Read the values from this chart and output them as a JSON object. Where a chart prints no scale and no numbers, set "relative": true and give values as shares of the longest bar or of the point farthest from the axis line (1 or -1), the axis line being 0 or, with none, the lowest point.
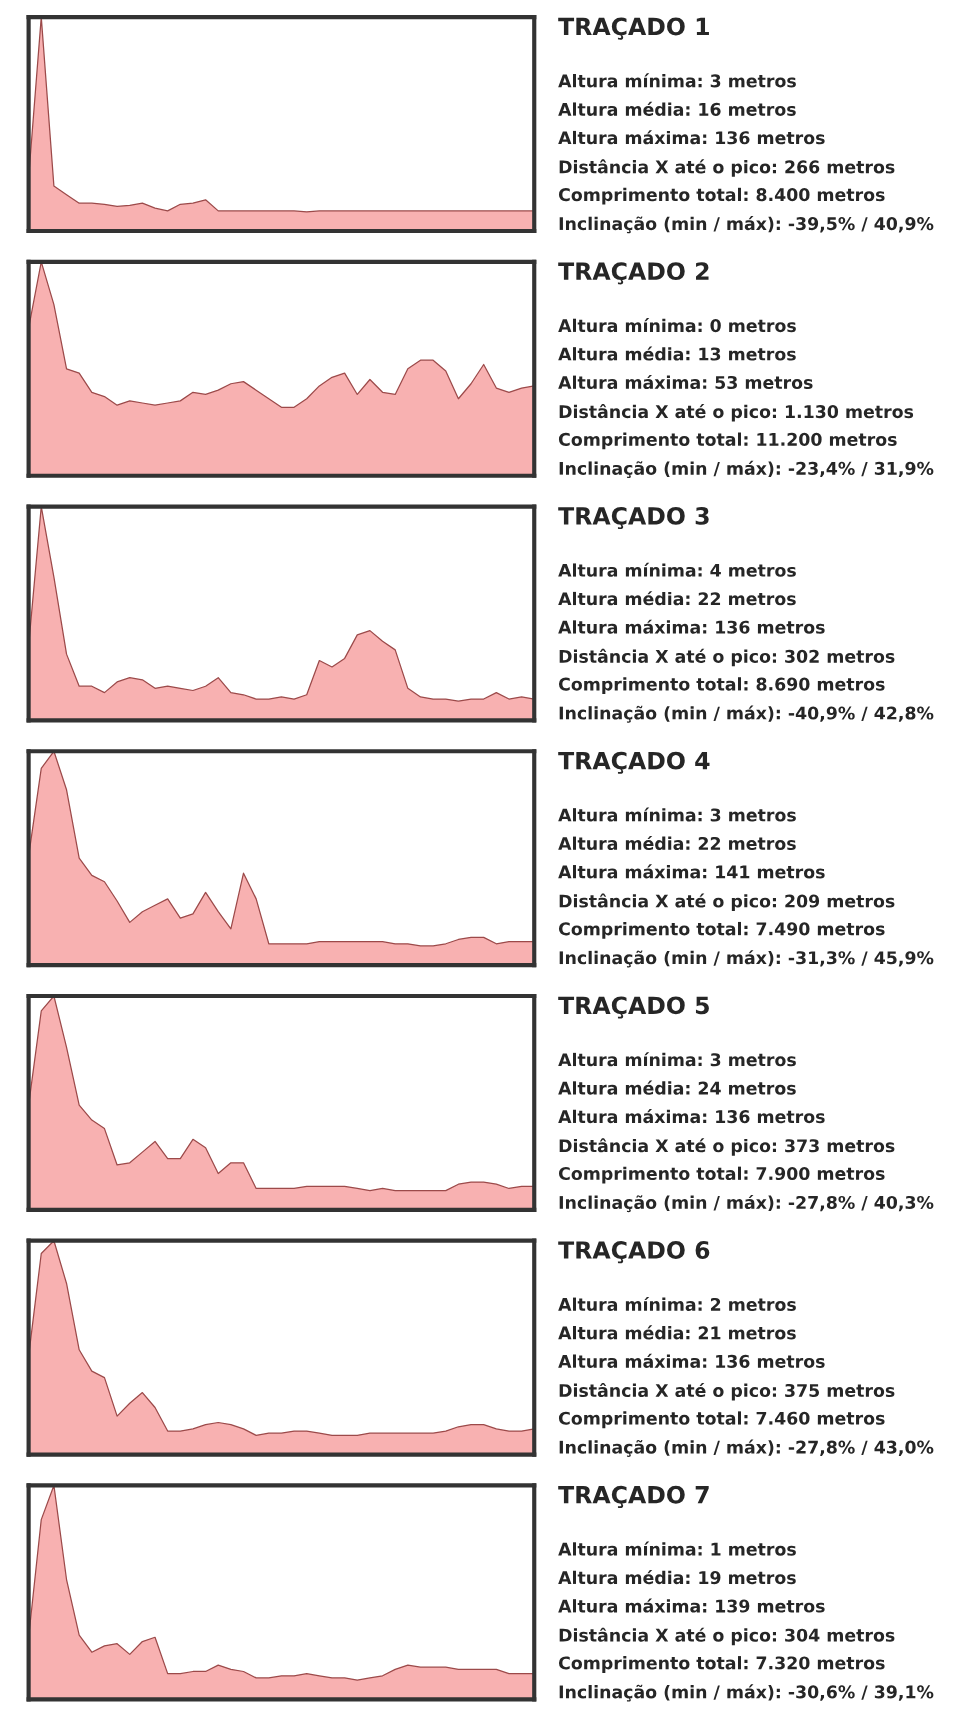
{
  "chart_data": [
    {
      "type": "area",
      "relative": true,
      "tick_labels": false,
      "categories": [
        null,
        null,
        null,
        null,
        null,
        null,
        null,
        null,
        null,
        null,
        null,
        null,
        null,
        null,
        null,
        null,
        null,
        null,
        null,
        null,
        null,
        null,
        null,
        null,
        null,
        null,
        null,
        null,
        null,
        null,
        null,
        null,
        null,
        null,
        null,
        null,
        null,
        null,
        null,
        null,
        null
      ],
      "series": [
        {
          "color": "#f7a9a9",
          "values": [
            0.25,
            1.0,
            0.21,
            0.17,
            0.13,
            0.13,
            0.125,
            0.115,
            0.12,
            0.13,
            0.107,
            0.094,
            0.125,
            0.13,
            0.146,
            0.094,
            0.094,
            0.094,
            0.094,
            0.094,
            0.094,
            0.094,
            0.09,
            0.094,
            0.094,
            0.094,
            0.094,
            0.094,
            0.094,
            0.094,
            0.094,
            0.094,
            0.094,
            0.094,
            0.094,
            0.094,
            0.094,
            0.094,
            0.094,
            0.094,
            0.094
          ]
        }
      ]
    },
    {
      "type": "other",
      "title": "TRAÇADO 1",
      "annotations": [
        "Altura mínima: 3 metros",
        "Altura média: 16 metros",
        "Altura máxima: 136 metros",
        "Distância X até o pico: 266 metros",
        "Comprimento total: 8.400 metros",
        "Inclinação (min / máx): -39,5% / 40,9%"
      ]
    },
    {
      "type": "area",
      "relative": true,
      "tick_labels": false,
      "categories": [
        null,
        null,
        null,
        null,
        null,
        null,
        null,
        null,
        null,
        null,
        null,
        null,
        null,
        null,
        null,
        null,
        null,
        null,
        null,
        null,
        null,
        null,
        null,
        null,
        null,
        null,
        null,
        null,
        null,
        null,
        null,
        null,
        null,
        null,
        null,
        null,
        null,
        null,
        null,
        null,
        null
      ],
      "series": [
        {
          "color": "#f7a9a9",
          "values": [
            0.69,
            1.0,
            0.8,
            0.5,
            0.48,
            0.39,
            0.37,
            0.33,
            0.35,
            0.34,
            0.33,
            0.34,
            0.35,
            0.39,
            0.38,
            0.4,
            0.43,
            0.44,
            0.4,
            0.36,
            0.32,
            0.32,
            0.36,
            0.42,
            0.46,
            0.48,
            0.38,
            0.45,
            0.39,
            0.38,
            0.5,
            0.54,
            0.54,
            0.49,
            0.36,
            0.43,
            0.52,
            0.41,
            0.39,
            0.41,
            0.42
          ]
        }
      ]
    },
    {
      "type": "other",
      "title": "TRAÇADO 2",
      "annotations": [
        "Altura mínima: 0 metros",
        "Altura média: 13 metros",
        "Altura máxima: 53 metros",
        "Distância X até o pico: 1.130 metros",
        "Comprimento total: 11.200 metros",
        "Inclinação (min / máx): -23,4% / 31,9%"
      ]
    },
    {
      "type": "area",
      "relative": true,
      "tick_labels": false,
      "categories": [
        null,
        null,
        null,
        null,
        null,
        null,
        null,
        null,
        null,
        null,
        null,
        null,
        null,
        null,
        null,
        null,
        null,
        null,
        null,
        null,
        null,
        null,
        null,
        null,
        null,
        null,
        null,
        null,
        null,
        null,
        null,
        null,
        null,
        null,
        null,
        null,
        null,
        null,
        null,
        null,
        null
      ],
      "series": [
        {
          "color": "#f7a9a9",
          "values": [
            0.35,
            1.0,
            0.67,
            0.31,
            0.16,
            0.16,
            0.13,
            0.18,
            0.2,
            0.19,
            0.15,
            0.16,
            0.15,
            0.14,
            0.16,
            0.2,
            0.13,
            0.12,
            0.1,
            0.1,
            0.11,
            0.1,
            0.12,
            0.28,
            0.25,
            0.29,
            0.4,
            0.42,
            0.37,
            0.33,
            0.15,
            0.11,
            0.1,
            0.1,
            0.09,
            0.1,
            0.1,
            0.13,
            0.1,
            0.11,
            0.1
          ]
        }
      ]
    },
    {
      "type": "other",
      "title": "TRAÇADO 3",
      "annotations": [
        "Altura mínima: 4 metros",
        "Altura média: 22 metros",
        "Altura máxima: 136 metros",
        "Distância X até o pico: 302 metros",
        "Comprimento total: 8.690 metros",
        "Inclinação (min / máx): -40,9% / 42,8%"
      ]
    },
    {
      "type": "area",
      "relative": true,
      "tick_labels": false,
      "categories": [
        null,
        null,
        null,
        null,
        null,
        null,
        null,
        null,
        null,
        null,
        null,
        null,
        null,
        null,
        null,
        null,
        null,
        null,
        null,
        null,
        null,
        null,
        null,
        null,
        null,
        null,
        null,
        null,
        null,
        null,
        null,
        null,
        null,
        null,
        null,
        null,
        null,
        null,
        null,
        null,
        null
      ],
      "series": [
        {
          "color": "#f7a9a9",
          "values": [
            0.51,
            0.92,
            1.0,
            0.82,
            0.5,
            0.42,
            0.39,
            0.3,
            0.2,
            0.25,
            0.28,
            0.31,
            0.22,
            0.24,
            0.34,
            0.25,
            0.17,
            0.43,
            0.31,
            0.1,
            0.1,
            0.1,
            0.1,
            0.11,
            0.11,
            0.11,
            0.11,
            0.11,
            0.11,
            0.1,
            0.1,
            0.09,
            0.09,
            0.1,
            0.12,
            0.13,
            0.13,
            0.1,
            0.11,
            0.11,
            0.11
          ]
        }
      ]
    },
    {
      "type": "other",
      "title": "TRAÇADO 4",
      "annotations": [
        "Altura mínima: 3 metros",
        "Altura média: 22 metros",
        "Altura máxima: 141 metros",
        "Distância X até o pico: 209 metros",
        "Comprimento total: 7.490 metros",
        "Inclinação (min / máx): -31,3% / 45,9%"
      ]
    },
    {
      "type": "area",
      "relative": true,
      "tick_labels": false,
      "categories": [
        null,
        null,
        null,
        null,
        null,
        null,
        null,
        null,
        null,
        null,
        null,
        null,
        null,
        null,
        null,
        null,
        null,
        null,
        null,
        null,
        null,
        null,
        null,
        null,
        null,
        null,
        null,
        null,
        null,
        null,
        null,
        null,
        null,
        null,
        null,
        null,
        null,
        null,
        null,
        null,
        null
      ],
      "series": [
        {
          "color": "#f7a9a9",
          "values": [
            0.49,
            0.93,
            1.0,
            0.76,
            0.49,
            0.42,
            0.38,
            0.21,
            0.22,
            0.27,
            0.32,
            0.24,
            0.24,
            0.33,
            0.29,
            0.17,
            0.22,
            0.22,
            0.1,
            0.1,
            0.1,
            0.1,
            0.11,
            0.11,
            0.11,
            0.11,
            0.1,
            0.09,
            0.1,
            0.09,
            0.09,
            0.09,
            0.09,
            0.09,
            0.12,
            0.13,
            0.13,
            0.12,
            0.1,
            0.11,
            0.11
          ]
        }
      ]
    },
    {
      "type": "other",
      "title": "TRAÇADO 5",
      "annotations": [
        "Altura mínima: 3 metros",
        "Altura média: 24 metros",
        "Altura máxima: 136 metros",
        "Distância X até o pico: 373 metros",
        "Comprimento total: 7.900 metros",
        "Inclinação (min / máx): -27,8% / 40,3%"
      ]
    },
    {
      "type": "area",
      "relative": true,
      "tick_labels": false,
      "categories": [
        null,
        null,
        null,
        null,
        null,
        null,
        null,
        null,
        null,
        null,
        null,
        null,
        null,
        null,
        null,
        null,
        null,
        null,
        null,
        null,
        null,
        null,
        null,
        null,
        null,
        null,
        null,
        null,
        null,
        null,
        null,
        null,
        null,
        null,
        null,
        null,
        null,
        null,
        null,
        null,
        null
      ],
      "series": [
        {
          "color": "#f7a9a9",
          "values": [
            0.46,
            0.94,
            1.0,
            0.8,
            0.49,
            0.39,
            0.36,
            0.18,
            0.24,
            0.29,
            0.22,
            0.11,
            0.11,
            0.12,
            0.14,
            0.15,
            0.14,
            0.12,
            0.09,
            0.1,
            0.1,
            0.11,
            0.11,
            0.1,
            0.09,
            0.09,
            0.09,
            0.1,
            0.1,
            0.1,
            0.1,
            0.1,
            0.1,
            0.11,
            0.13,
            0.14,
            0.14,
            0.12,
            0.11,
            0.11,
            0.12
          ]
        }
      ]
    },
    {
      "type": "other",
      "title": "TRAÇADO 6",
      "annotations": [
        "Altura mínima: 2 metros",
        "Altura média: 21 metros",
        "Altura máxima: 136 metros",
        "Distância X até o pico: 375 metros",
        "Comprimento total: 7.460 metros",
        "Inclinação (min / máx): -27,8% / 43,0%"
      ]
    },
    {
      "type": "area",
      "relative": true,
      "tick_labels": false,
      "categories": [
        null,
        null,
        null,
        null,
        null,
        null,
        null,
        null,
        null,
        null,
        null,
        null,
        null,
        null,
        null,
        null,
        null,
        null,
        null,
        null,
        null,
        null,
        null,
        null,
        null,
        null,
        null,
        null,
        null,
        null,
        null,
        null,
        null,
        null,
        null,
        null,
        null,
        null,
        null,
        null,
        null
      ],
      "series": [
        {
          "color": "#f7a9a9",
          "values": [
            0.29,
            0.84,
            1.0,
            0.56,
            0.3,
            0.22,
            0.25,
            0.26,
            0.21,
            0.27,
            0.29,
            0.12,
            0.12,
            0.13,
            0.13,
            0.16,
            0.14,
            0.13,
            0.1,
            0.1,
            0.11,
            0.11,
            0.12,
            0.11,
            0.1,
            0.1,
            0.09,
            0.1,
            0.11,
            0.14,
            0.16,
            0.15,
            0.15,
            0.15,
            0.14,
            0.14,
            0.14,
            0.14,
            0.12,
            0.12,
            0.12
          ]
        }
      ]
    },
    {
      "type": "other",
      "title": "TRAÇADO 7",
      "annotations": [
        "Altura mínima: 1 metros",
        "Altura média: 19 metros",
        "Altura máxima: 139 metros",
        "Distância X até o pico: 304 metros",
        "Comprimento total: 7.320 metros",
        "Inclinação (min / máx): -30,6% / 39,1%"
      ]
    }
  ]
}
